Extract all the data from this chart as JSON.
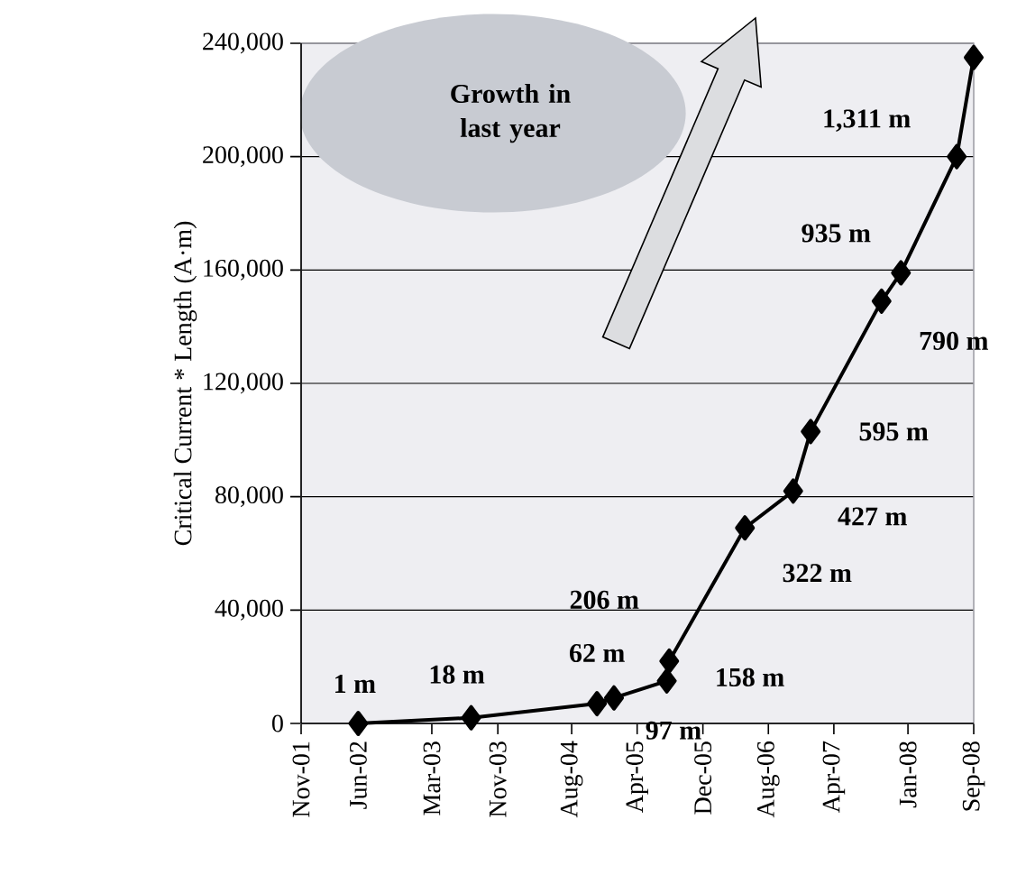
{
  "chart_data": {
    "type": "line",
    "ylabel": "Critical Current * Length (A·m)",
    "annotations": [
      "Growth in last year",
      {
        "text": "1 m",
        "x": "2002-06-01",
        "y": 0
      },
      {
        "text": "18 m",
        "x": "2003-07-25",
        "y": 2000
      },
      {
        "text": "62 m",
        "x": "2004-11-03",
        "y": 7000
      },
      {
        "text": "97 m",
        "x": "2005-01-05",
        "y": 9000
      },
      {
        "text": "158 m",
        "x": "2005-07-20",
        "y": 15000
      },
      {
        "text": "206 m",
        "x": "2005-07-29",
        "y": 22000
      },
      {
        "text": "322 m",
        "x": "2006-05-06",
        "y": 69000
      },
      {
        "text": "427 m",
        "x": "2006-11-01",
        "y": 82000
      },
      {
        "text": "595 m",
        "x": "2007-01-05",
        "y": 103000
      },
      {
        "text": "790 m",
        "x": "2007-09-25",
        "y": 149000
      },
      {
        "text": "935 m",
        "x": "2007-12-06",
        "y": 159000
      },
      {
        "text": "1,311 m",
        "x": "2008-06-30",
        "y": 200000
      }
    ],
    "x": [
      "2002-06-01",
      "2003-07-25",
      "2004-11-03",
      "2005-01-05",
      "2005-07-20",
      "2005-07-29",
      "2006-05-06",
      "2006-11-01",
      "2007-01-05",
      "2007-09-25",
      "2007-12-06",
      "2008-06-30",
      "2008-09-01"
    ],
    "values": [
      0,
      2000,
      7000,
      9000,
      15000,
      22000,
      69000,
      82000,
      103000,
      149000,
      159000,
      200000,
      235000
    ],
    "color": "#000000",
    "marker": "diamond",
    "line_style": "solid",
    "grid": "y",
    "xlim": [
      "2001-11-01",
      "2008-09-01"
    ],
    "xticks": [
      {
        "value": "2001-11-01",
        "label": "Nov-01"
      },
      {
        "value": "2002-06-01",
        "label": "Jun-02"
      },
      {
        "value": "2003-03-01",
        "label": "Mar-03"
      },
      {
        "value": "2003-11-01",
        "label": "Nov-03"
      },
      {
        "value": "2004-08-01",
        "label": "Aug-04"
      },
      {
        "value": "2005-04-01",
        "label": "Apr-05"
      },
      {
        "value": "2005-12-01",
        "label": "Dec-05"
      },
      {
        "value": "2006-08-01",
        "label": "Aug-06"
      },
      {
        "value": "2007-04-01",
        "label": "Apr-07"
      },
      {
        "value": "2008-01-01",
        "label": "Jan-08"
      },
      {
        "value": "2008-09-01",
        "label": "Sep-08"
      }
    ],
    "ylim": [
      0,
      240000
    ],
    "yticks": [
      0,
      {
        "value": 40000,
        "label": "40,000"
      },
      {
        "value": 80000,
        "label": "80,000"
      },
      {
        "value": 120000,
        "label": "120,000"
      },
      {
        "value": 160000,
        "label": "160,000"
      },
      {
        "value": 200000,
        "label": "200,000"
      },
      {
        "value": 240000,
        "label": "240,000"
      }
    ]
  }
}
